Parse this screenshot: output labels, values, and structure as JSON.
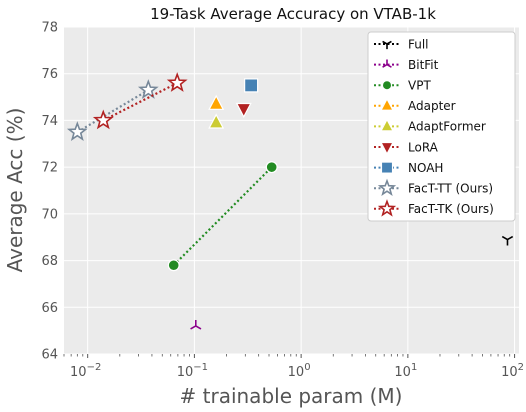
{
  "chart_data": {
    "type": "scatter",
    "title": "19-Task Average Accuracy on VTAB-1k",
    "xlabel": "# trainable param (M)",
    "ylabel": "Average Acc (%)",
    "xscale": "log",
    "xlim": [
      0.006,
      110
    ],
    "ylim": [
      64,
      78
    ],
    "x_ticks": [
      {
        "value": 0.01,
        "base": "10",
        "exp": "−2"
      },
      {
        "value": 0.1,
        "base": "10",
        "exp": "−1"
      },
      {
        "value": 1,
        "base": "10",
        "exp": "0"
      },
      {
        "value": 10,
        "base": "10",
        "exp": "1"
      },
      {
        "value": 100,
        "base": "10",
        "exp": "2"
      }
    ],
    "y_ticks": [
      "64",
      "66",
      "68",
      "70",
      "72",
      "74",
      "76",
      "78"
    ],
    "grid": true,
    "legend_position": "top-right",
    "series": [
      {
        "name": "Full",
        "marker": "tri_down",
        "color": "#000000",
        "points": [
          [
            85.8,
            68.9
          ]
        ]
      },
      {
        "name": "BitFit",
        "marker": "tri_up",
        "color": "#8b008b",
        "points": [
          [
            0.103,
            65.2
          ]
        ]
      },
      {
        "name": "VPT",
        "marker": "circle",
        "color": "#228b22",
        "points": [
          [
            0.064,
            67.8
          ],
          [
            0.53,
            72.0
          ]
        ]
      },
      {
        "name": "Adapter",
        "marker": "triangle_up",
        "color": "#ffa500",
        "points": [
          [
            0.16,
            74.7
          ]
        ]
      },
      {
        "name": "AdaptFormer",
        "marker": "triangle_up",
        "color": "#cccc33",
        "points": [
          [
            0.16,
            73.9
          ]
        ]
      },
      {
        "name": "LoRA",
        "marker": "triangle_down",
        "color": "#b22222",
        "points": [
          [
            0.29,
            74.5
          ]
        ]
      },
      {
        "name": "NOAH",
        "marker": "square",
        "color": "#4682b4",
        "points": [
          [
            0.34,
            75.5
          ]
        ]
      },
      {
        "name": "FacT-TT (Ours)",
        "marker": "star",
        "color": "#778899",
        "points": [
          [
            0.008,
            73.5
          ],
          [
            0.037,
            75.3
          ]
        ]
      },
      {
        "name": "FacT-TK (Ours)",
        "marker": "star",
        "color": "#b22222",
        "points": [
          [
            0.014,
            74.0
          ],
          [
            0.069,
            75.6
          ]
        ]
      }
    ]
  }
}
